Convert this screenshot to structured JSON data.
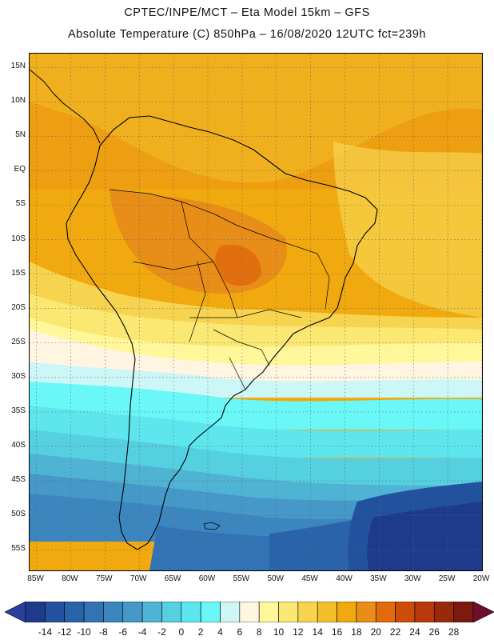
{
  "header": {
    "line1": "CPTEC/INPE/MCT –  Eta Model 15km – GFS",
    "line2": "Absolute Temperature (C) 850hPa – 16/08/2020 12UTC fct=239h"
  },
  "map": {
    "region": "South America",
    "lon_range": [
      -86,
      -20
    ],
    "lat_range": [
      -58,
      17
    ],
    "lat_labels": [
      "15N",
      "10N",
      "5N",
      "EQ",
      "5S",
      "10S",
      "15S",
      "20S",
      "25S",
      "30S",
      "35S",
      "40S",
      "45S",
      "50S",
      "55S"
    ],
    "lat_values": [
      15,
      10,
      5,
      0,
      -5,
      -10,
      -15,
      -20,
      -25,
      -30,
      -35,
      -40,
      -45,
      -50,
      -55
    ],
    "lon_labels": [
      "85W",
      "80W",
      "75W",
      "70W",
      "65W",
      "60W",
      "55W",
      "50W",
      "45W",
      "40W",
      "35W",
      "30W",
      "25W",
      "20W"
    ],
    "lon_values": [
      -85,
      -80,
      -75,
      -70,
      -65,
      -60,
      -55,
      -50,
      -45,
      -40,
      -35,
      -30,
      -25,
      -20
    ]
  },
  "colorbar": {
    "labels": [
      "-14",
      "-12",
      "-10",
      "-8",
      "-6",
      "-4",
      "-2",
      "0",
      "2",
      "4",
      "6",
      "8",
      "10",
      "12",
      "14",
      "16",
      "18",
      "20",
      "22",
      "24",
      "26",
      "28"
    ],
    "colors": [
      "#1e3a8a",
      "#22529e",
      "#2a63aa",
      "#3273b4",
      "#3c86bf",
      "#4698c8",
      "#4fb3d4",
      "#55d0e0",
      "#5ee6ee",
      "#6af7f7",
      "#cdf6f6",
      "#fff5e0",
      "#fff79a",
      "#fbe873",
      "#f6d44f",
      "#f2be2a",
      "#f0a90f",
      "#e88d17",
      "#e06a0c",
      "#cc4d0a",
      "#b8380c",
      "#9a280d",
      "#7c1a10"
    ],
    "left_arrow": "#283fa0",
    "right_arrow": "#6d0f2a"
  }
}
